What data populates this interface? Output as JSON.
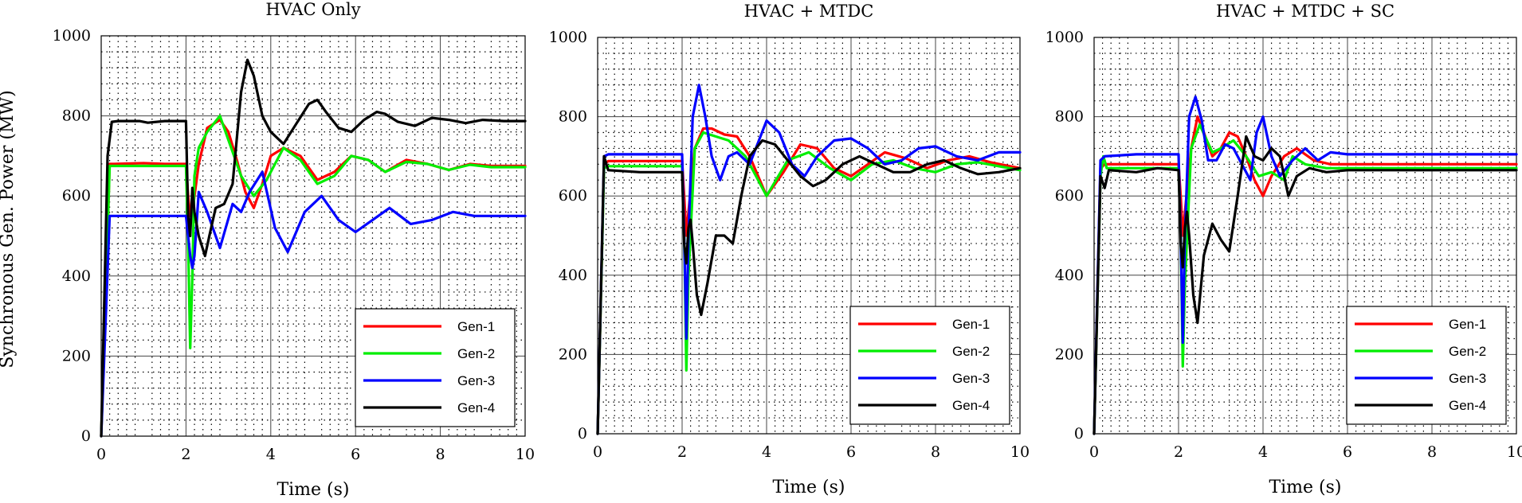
{
  "figure": {
    "ylabel": "Synchronous Gen. Power (MW)"
  },
  "chart_data": [
    {
      "type": "line",
      "title": "HVAC Only",
      "xlabel": "Time (s)",
      "ylabel": "Synchronous Gen. Power (MW)",
      "xlim": [
        0,
        10
      ],
      "ylim": [
        0,
        1000
      ],
      "xticks": [
        "0",
        "2",
        "4",
        "6",
        "8",
        "10"
      ],
      "yticks": [
        "0",
        "200",
        "400",
        "600",
        "800",
        "1000"
      ],
      "grid": true,
      "legend_position": "bottom-right",
      "series": [
        {
          "name": "Gen-1",
          "color": "#ff0000",
          "x": [
            0,
            0.2,
            0.3,
            1.0,
            1.5,
            2.0,
            2.05,
            2.1,
            2.15,
            2.3,
            2.5,
            2.8,
            3.0,
            3.2,
            3.4,
            3.6,
            3.8,
            4.0,
            4.3,
            4.7,
            5.1,
            5.5,
            5.9,
            6.3,
            6.7,
            7.2,
            7.7,
            8.2,
            8.7,
            9.2,
            10
          ],
          "y": [
            0,
            680,
            680,
            682,
            680,
            680,
            600,
            550,
            560,
            680,
            770,
            790,
            760,
            690,
            610,
            570,
            630,
            700,
            720,
            700,
            640,
            660,
            700,
            690,
            660,
            690,
            680,
            665,
            680,
            675,
            675
          ]
        },
        {
          "name": "Gen-2",
          "color": "#00ee00",
          "x": [
            0,
            0.2,
            0.3,
            1.0,
            2.0,
            2.05,
            2.1,
            2.15,
            2.2,
            2.3,
            2.5,
            2.8,
            3.0,
            3.3,
            3.6,
            3.9,
            4.3,
            4.7,
            5.1,
            5.5,
            5.9,
            6.3,
            6.7,
            7.2,
            7.7,
            8.2,
            8.7,
            9.2,
            10
          ],
          "y": [
            0,
            675,
            675,
            675,
            675,
            480,
            220,
            400,
            650,
            720,
            760,
            800,
            740,
            650,
            600,
            640,
            720,
            690,
            630,
            650,
            700,
            690,
            660,
            685,
            680,
            665,
            678,
            672,
            672
          ]
        },
        {
          "name": "Gen-3",
          "color": "#0000ff",
          "x": [
            0,
            0.2,
            0.3,
            1.0,
            2.0,
            2.05,
            2.1,
            2.15,
            2.2,
            2.3,
            2.5,
            2.8,
            3.1,
            3.3,
            3.5,
            3.8,
            4.1,
            4.4,
            4.8,
            5.2,
            5.6,
            6.0,
            6.4,
            6.8,
            7.3,
            7.8,
            8.3,
            8.8,
            9.3,
            10
          ],
          "y": [
            0,
            550,
            550,
            550,
            550,
            500,
            450,
            420,
            450,
            610,
            560,
            470,
            580,
            560,
            610,
            660,
            520,
            460,
            560,
            600,
            540,
            510,
            540,
            570,
            530,
            540,
            560,
            550,
            550,
            550
          ]
        },
        {
          "name": "Gen-4",
          "color": "#000000",
          "x": [
            0,
            0.15,
            0.25,
            0.4,
            0.9,
            1.1,
            1.5,
            2.0,
            2.05,
            2.1,
            2.15,
            2.2,
            2.3,
            2.45,
            2.55,
            2.7,
            2.9,
            3.1,
            3.3,
            3.45,
            3.6,
            3.8,
            4.0,
            4.3,
            4.6,
            4.9,
            5.1,
            5.3,
            5.6,
            5.9,
            6.2,
            6.5,
            6.7,
            7.0,
            7.4,
            7.8,
            8.2,
            8.6,
            9.0,
            9.5,
            10
          ],
          "y": [
            0,
            700,
            785,
            787,
            787,
            783,
            787,
            787,
            550,
            500,
            620,
            560,
            500,
            450,
            500,
            570,
            580,
            630,
            860,
            940,
            900,
            800,
            760,
            730,
            780,
            830,
            840,
            810,
            770,
            760,
            790,
            810,
            805,
            785,
            775,
            795,
            790,
            782,
            790,
            787,
            787
          ]
        }
      ]
    },
    {
      "type": "line",
      "title": "HVAC + MTDC",
      "xlabel": "Time (s)",
      "ylabel": "",
      "xlim": [
        0,
        10
      ],
      "ylim": [
        0,
        1000
      ],
      "xticks": [
        "0",
        "2",
        "4",
        "6",
        "8",
        "10"
      ],
      "yticks": [
        "0",
        "200",
        "400",
        "600",
        "800",
        "1000"
      ],
      "grid": true,
      "legend_position": "bottom-right",
      "series": [
        {
          "name": "Gen-1",
          "color": "#ff0000",
          "x": [
            0,
            0.15,
            0.25,
            1.0,
            2.0,
            2.05,
            2.1,
            2.15,
            2.3,
            2.5,
            2.7,
            3.0,
            3.3,
            3.6,
            4.0,
            4.4,
            4.8,
            5.2,
            5.6,
            6.0,
            6.4,
            6.8,
            7.3,
            7.8,
            8.3,
            8.8,
            9.3,
            10
          ],
          "y": [
            0,
            680,
            688,
            688,
            688,
            600,
            500,
            560,
            720,
            770,
            770,
            755,
            750,
            700,
            600,
            660,
            730,
            720,
            670,
            650,
            680,
            710,
            695,
            670,
            690,
            700,
            685,
            670
          ]
        },
        {
          "name": "Gen-2",
          "color": "#00ee00",
          "x": [
            0,
            0.15,
            0.25,
            1.0,
            2.0,
            2.05,
            2.1,
            2.15,
            2.3,
            2.5,
            2.8,
            3.1,
            3.5,
            4.0,
            4.5,
            5.0,
            5.5,
            6.0,
            6.5,
            7.0,
            7.5,
            8.0,
            8.5,
            9.0,
            10
          ],
          "y": [
            0,
            670,
            675,
            675,
            675,
            500,
            160,
            400,
            720,
            760,
            750,
            740,
            700,
            600,
            690,
            710,
            670,
            640,
            680,
            690,
            670,
            660,
            680,
            685,
            665
          ]
        },
        {
          "name": "Gen-3",
          "color": "#0000ff",
          "x": [
            0,
            0.15,
            0.25,
            1.0,
            2.0,
            2.05,
            2.1,
            2.15,
            2.25,
            2.4,
            2.55,
            2.7,
            2.9,
            3.1,
            3.3,
            3.6,
            4.0,
            4.3,
            4.6,
            4.9,
            5.2,
            5.6,
            6.0,
            6.4,
            6.8,
            7.2,
            7.6,
            8.0,
            8.5,
            9.0,
            9.5,
            10
          ],
          "y": [
            0,
            700,
            705,
            705,
            705,
            500,
            240,
            500,
            800,
            880,
            800,
            700,
            640,
            700,
            710,
            680,
            790,
            760,
            680,
            650,
            700,
            740,
            745,
            720,
            680,
            690,
            720,
            725,
            700,
            690,
            710,
            710
          ]
        },
        {
          "name": "Gen-4",
          "color": "#000000",
          "x": [
            0,
            0.15,
            0.25,
            1.0,
            2.0,
            2.05,
            2.1,
            2.15,
            2.2,
            2.25,
            2.35,
            2.45,
            2.6,
            2.8,
            3.0,
            3.2,
            3.4,
            3.6,
            3.9,
            4.2,
            4.5,
            4.8,
            5.1,
            5.4,
            5.8,
            6.2,
            6.6,
            7.0,
            7.4,
            7.8,
            8.2,
            8.6,
            9.0,
            9.5,
            10
          ],
          "y": [
            0,
            700,
            665,
            660,
            660,
            480,
            430,
            520,
            540,
            480,
            350,
            300,
            380,
            500,
            500,
            480,
            600,
            700,
            740,
            730,
            690,
            650,
            625,
            640,
            680,
            700,
            680,
            660,
            660,
            680,
            690,
            670,
            655,
            660,
            670
          ]
        }
      ]
    },
    {
      "type": "line",
      "title": "HVAC + MTDC + SC",
      "xlabel": "Time (s)",
      "ylabel": "",
      "xlim": [
        0,
        10
      ],
      "ylim": [
        0,
        1000
      ],
      "xticks": [
        "0",
        "2",
        "4",
        "6",
        "8",
        "10"
      ],
      "yticks": [
        "0",
        "200",
        "400",
        "600",
        "800",
        "1000"
      ],
      "grid": true,
      "legend_position": "bottom-right",
      "series": [
        {
          "name": "Gen-1",
          "color": "#ff0000",
          "x": [
            0,
            0.15,
            0.25,
            1.0,
            2.0,
            2.05,
            2.1,
            2.15,
            2.3,
            2.45,
            2.6,
            2.8,
            3.0,
            3.2,
            3.4,
            3.6,
            3.8,
            4.0,
            4.2,
            4.5,
            4.8,
            5.2,
            5.6,
            6.0,
            7.0,
            8.0,
            9.0,
            10
          ],
          "y": [
            0,
            670,
            680,
            680,
            680,
            600,
            500,
            560,
            720,
            800,
            760,
            700,
            720,
            760,
            750,
            700,
            640,
            600,
            650,
            700,
            720,
            690,
            680,
            680,
            680,
            680,
            680,
            680
          ]
        },
        {
          "name": "Gen-2",
          "color": "#00ee00",
          "x": [
            0,
            0.15,
            0.22,
            0.3,
            0.4,
            1.0,
            2.0,
            2.05,
            2.1,
            2.15,
            2.3,
            2.5,
            2.8,
            3.0,
            3.3,
            3.6,
            3.9,
            4.2,
            4.5,
            4.7,
            5.0,
            5.5,
            6.0,
            7.0,
            8.0,
            9.0,
            10
          ],
          "y": [
            0,
            650,
            700,
            670,
            670,
            670,
            670,
            500,
            170,
            380,
            720,
            780,
            710,
            720,
            740,
            700,
            650,
            660,
            640,
            700,
            680,
            670,
            670,
            670,
            670,
            670,
            670
          ]
        },
        {
          "name": "Gen-3",
          "color": "#0000ff",
          "x": [
            0,
            0.15,
            0.25,
            1.0,
            2.0,
            2.05,
            2.1,
            2.15,
            2.25,
            2.4,
            2.55,
            2.7,
            2.9,
            3.1,
            3.3,
            3.5,
            3.7,
            3.85,
            4.0,
            4.2,
            4.4,
            4.7,
            5.0,
            5.3,
            5.6,
            6.0,
            7.0,
            8.0,
            9.0,
            10
          ],
          "y": [
            0,
            690,
            700,
            705,
            705,
            500,
            230,
            500,
            800,
            850,
            790,
            690,
            690,
            730,
            720,
            680,
            640,
            760,
            800,
            700,
            650,
            690,
            720,
            690,
            710,
            705,
            705,
            705,
            705,
            705
          ]
        },
        {
          "name": "Gen-4",
          "color": "#000000",
          "x": [
            0,
            0.15,
            0.25,
            0.35,
            1.0,
            1.5,
            2.0,
            2.05,
            2.1,
            2.15,
            2.2,
            2.25,
            2.35,
            2.45,
            2.6,
            2.8,
            3.0,
            3.2,
            3.4,
            3.6,
            3.8,
            4.0,
            4.2,
            4.4,
            4.6,
            4.8,
            5.1,
            5.5,
            6.0,
            7.0,
            8.0,
            9.0,
            10
          ],
          "y": [
            0,
            650,
            620,
            665,
            660,
            670,
            665,
            480,
            420,
            520,
            560,
            500,
            350,
            280,
            450,
            530,
            490,
            460,
            600,
            750,
            700,
            690,
            720,
            700,
            600,
            650,
            670,
            660,
            665,
            665,
            665,
            665,
            665
          ]
        }
      ]
    }
  ]
}
